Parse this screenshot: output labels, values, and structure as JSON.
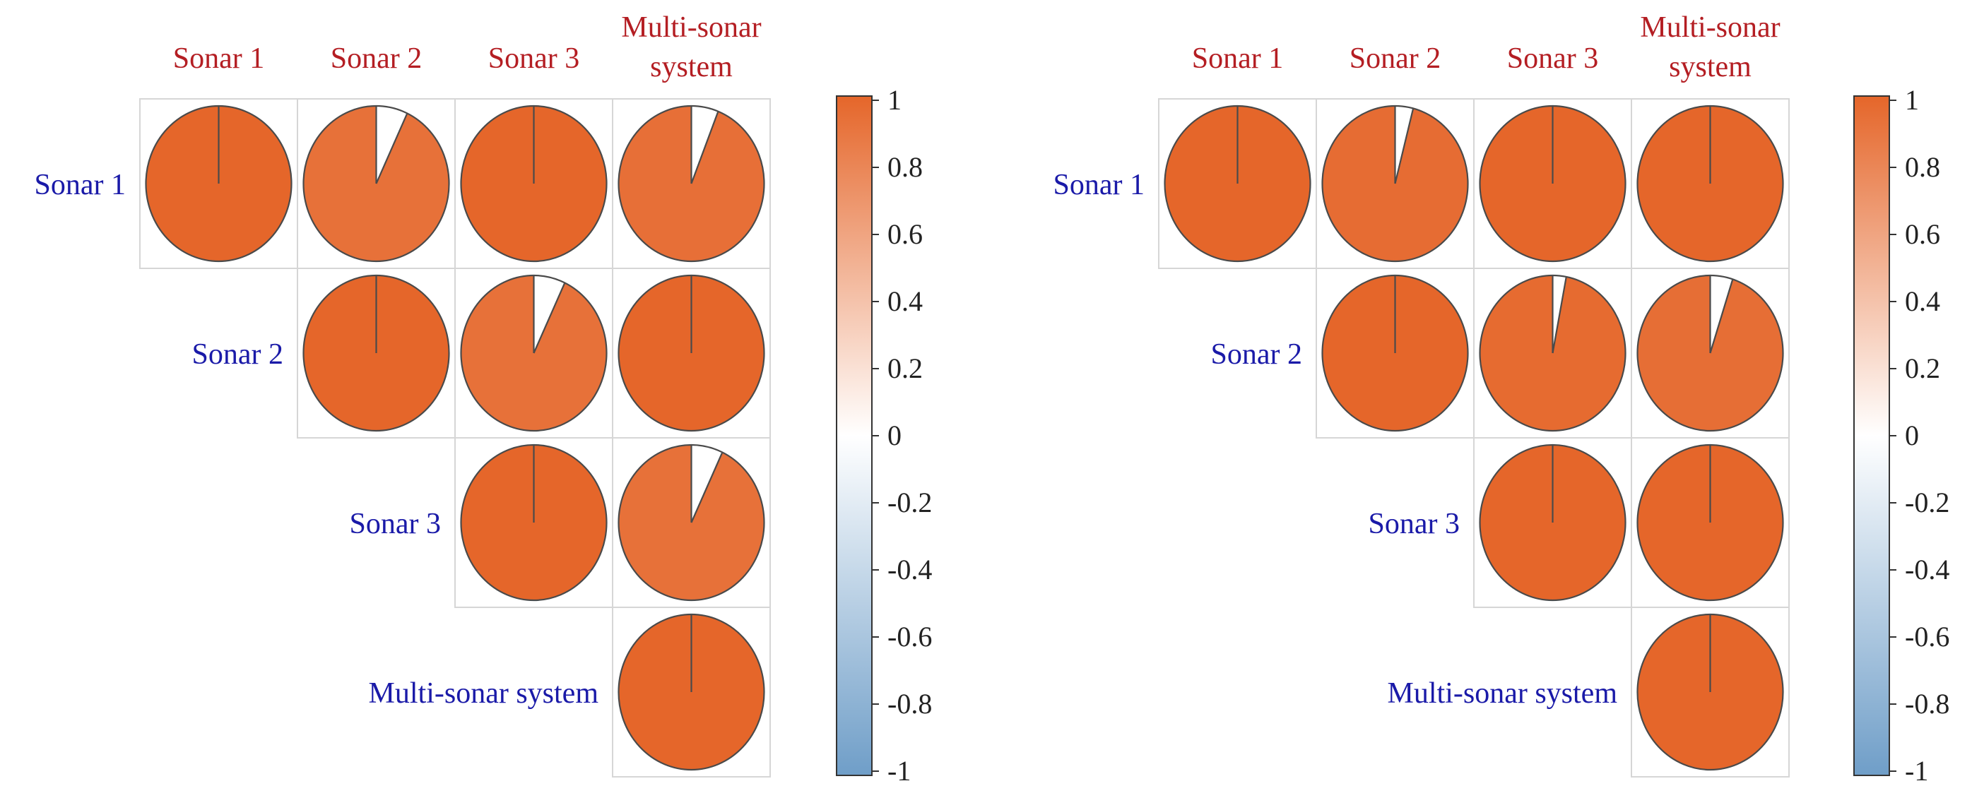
{
  "chart_data": [
    {
      "type": "correlogram-pie",
      "panel": "left",
      "column_labels": [
        [
          "Sonar 1"
        ],
        [
          "Sonar 2"
        ],
        [
          "Sonar 3"
        ],
        [
          "Multi-sonar",
          "system"
        ]
      ],
      "row_labels": [
        "Sonar 1",
        "Sonar 2",
        "Sonar 3",
        "Multi-sonar system"
      ],
      "values": [
        [
          1.0,
          0.93,
          1.0,
          0.94
        ],
        [
          null,
          1.0,
          0.93,
          1.0
        ],
        [
          null,
          null,
          1.0,
          0.93
        ],
        [
          null,
          null,
          null,
          1.0
        ]
      ],
      "colorbar": {
        "vmin": -1,
        "vmax": 1,
        "ticks": [
          "1",
          "0.8",
          "0.6",
          "0.4",
          "0.2",
          "0",
          "-0.2",
          "-0.4",
          "-0.6",
          "-0.8",
          "-1"
        ],
        "colors": {
          "negative": "#6f9ec8",
          "zero": "#ffffff",
          "positive": "#e5662a"
        }
      }
    },
    {
      "type": "correlogram-pie",
      "panel": "right",
      "column_labels": [
        [
          "Sonar 1"
        ],
        [
          "Sonar 2"
        ],
        [
          "Sonar 3"
        ],
        [
          "Multi-sonar",
          "system"
        ]
      ],
      "row_labels": [
        "Sonar 1",
        "Sonar 2",
        "Sonar 3",
        "Multi-sonar system"
      ],
      "values": [
        [
          1.0,
          0.96,
          1.0,
          1.0
        ],
        [
          null,
          1.0,
          0.97,
          0.95
        ],
        [
          null,
          null,
          1.0,
          1.0
        ],
        [
          null,
          null,
          null,
          1.0
        ]
      ],
      "colorbar": {
        "vmin": -1,
        "vmax": 1,
        "ticks": [
          "1",
          "0.8",
          "0.6",
          "0.4",
          "0.2",
          "0",
          "-0.2",
          "-0.4",
          "-0.6",
          "-0.8",
          "-1"
        ],
        "colors": {
          "negative": "#6f9ec8",
          "zero": "#ffffff",
          "positive": "#e5662a"
        }
      }
    }
  ]
}
